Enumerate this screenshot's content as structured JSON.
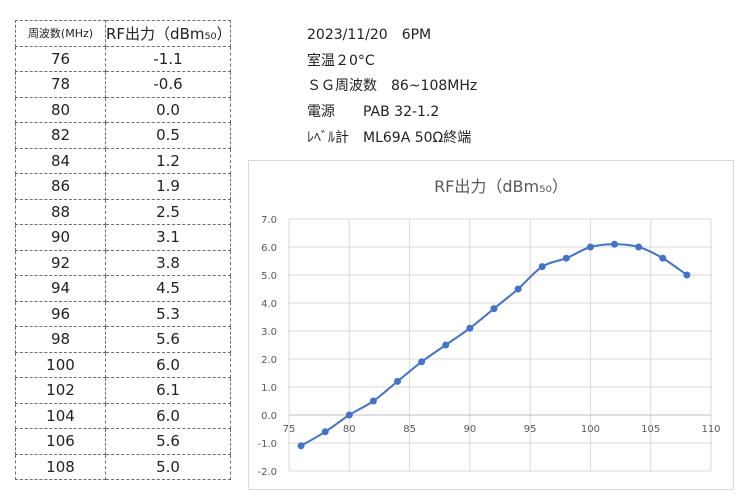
{
  "table": {
    "header_freq": "周波数(MHz)",
    "header_rf": "RF出力（dBm₅₀）",
    "rows": [
      {
        "freq": "76",
        "rf": "-1.1"
      },
      {
        "freq": "78",
        "rf": "-0.6"
      },
      {
        "freq": "80",
        "rf": "0.0"
      },
      {
        "freq": "82",
        "rf": "0.5"
      },
      {
        "freq": "84",
        "rf": "1.2"
      },
      {
        "freq": "86",
        "rf": "1.9"
      },
      {
        "freq": "88",
        "rf": "2.5"
      },
      {
        "freq": "90",
        "rf": "3.1"
      },
      {
        "freq": "92",
        "rf": "3.8"
      },
      {
        "freq": "94",
        "rf": "4.5"
      },
      {
        "freq": "96",
        "rf": "5.3"
      },
      {
        "freq": "98",
        "rf": "5.6"
      },
      {
        "freq": "100",
        "rf": "6.0"
      },
      {
        "freq": "102",
        "rf": "6.1"
      },
      {
        "freq": "104",
        "rf": "6.0"
      },
      {
        "freq": "106",
        "rf": "5.6"
      },
      {
        "freq": "108",
        "rf": "5.0"
      }
    ]
  },
  "notes": {
    "date": "2023/11/20　6PM",
    "temp": "室温２0°C",
    "sg": "ＳＧ周波数　86~108MHz",
    "power": "電源　　PAB 32-1.2",
    "meter": "ﾚﾍﾞﾙ計　ML69A 50Ω終端"
  },
  "chart_data": {
    "type": "scatter",
    "title": "RF出力（dBm₅₀）",
    "x": [
      76,
      78,
      80,
      82,
      84,
      86,
      88,
      90,
      92,
      94,
      96,
      98,
      100,
      102,
      104,
      106,
      108
    ],
    "y": [
      -1.1,
      -0.6,
      0.0,
      0.5,
      1.2,
      1.9,
      2.5,
      3.1,
      3.8,
      4.5,
      5.3,
      5.6,
      6.0,
      6.1,
      6.0,
      5.6,
      5.0
    ],
    "xlim": [
      75,
      110
    ],
    "ylim": [
      -2.0,
      7.0
    ],
    "xticks": [
      "75",
      "80",
      "85",
      "90",
      "95",
      "100",
      "105",
      "110"
    ],
    "yticks": [
      "-2.0",
      "-1.0",
      "0.0",
      "1.0",
      "2.0",
      "3.0",
      "4.0",
      "5.0",
      "6.0",
      "7.0"
    ],
    "grid": true,
    "line_style": "smooth line with markers",
    "series_color": "#4472C4"
  }
}
